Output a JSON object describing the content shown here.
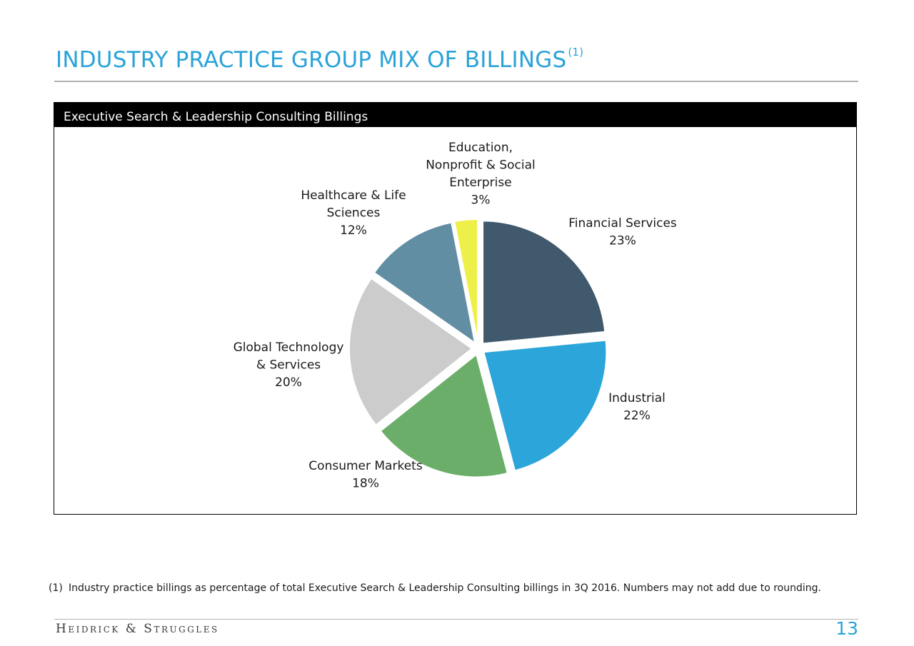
{
  "slide": {
    "title": "INDUSTRY PRACTICE GROUP MIX OF BILLINGS",
    "title_footnote_marker": "(1)",
    "panel_header": "Executive Search & Leadership Consulting Billings",
    "footnote_number": "(1)",
    "footnote_text": "Industry practice billings as percentage of total Executive Search & Leadership Consulting billings in 3Q 2016. Numbers may not add due to rounding.",
    "brand": "Heidrick & Struggles",
    "page_number": "13"
  },
  "chart_data": {
    "type": "pie",
    "start": "12 o'clock",
    "direction": "clockwise",
    "exploded": true,
    "slices": [
      {
        "label_lines": [
          "Financial Services"
        ],
        "value": 23,
        "value_label": "23%",
        "color": "#41596c"
      },
      {
        "label_lines": [
          "Industrial"
        ],
        "value": 22,
        "value_label": "22%",
        "color": "#2ca5da"
      },
      {
        "label_lines": [
          "Consumer Markets"
        ],
        "value": 18,
        "value_label": "18%",
        "color": "#6aae6a"
      },
      {
        "label_lines": [
          "Global Technology",
          "& Services"
        ],
        "value": 20,
        "value_label": "20%",
        "color": "#cccccc"
      },
      {
        "label_lines": [
          "Healthcare & Life",
          "Sciences"
        ],
        "value": 12,
        "value_label": "12%",
        "color": "#628ea3"
      },
      {
        "label_lines": [
          "Education,",
          "Nonprofit & Social",
          "Enterprise"
        ],
        "value": 3,
        "value_label": "3%",
        "color": "#eef04a"
      }
    ]
  }
}
